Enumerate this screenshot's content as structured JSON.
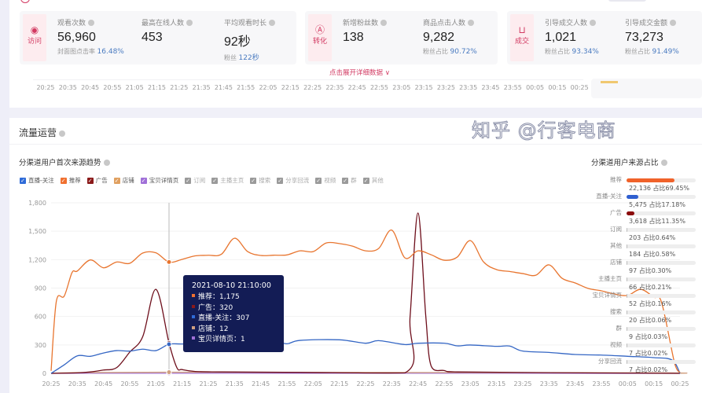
{
  "colors": {
    "accent": "#d23a62",
    "link": "#4a7bc0",
    "tooltip_bg": "#131c55"
  },
  "overview": {
    "groups": [
      {
        "icon": "eye-icon",
        "label": "访问",
        "metrics": [
          {
            "label": "观看次数",
            "value": "56,960",
            "sub_label": "封面图点击率",
            "sub_value": "16.48%"
          },
          {
            "label": "最高在线人数",
            "value": "453",
            "sub_label": "",
            "sub_value": ""
          },
          {
            "label": "平均观看时长",
            "value": "92秒",
            "sub_label": "粉丝",
            "sub_value": "122秒"
          }
        ]
      },
      {
        "icon": "user-circle-icon",
        "label": "转化",
        "metrics": [
          {
            "label": "新增粉丝数",
            "value": "138",
            "sub_label": "",
            "sub_value": ""
          },
          {
            "label": "商品点击人数",
            "value": "9,282",
            "sub_label": "粉丝占比",
            "sub_value": "90.72%"
          }
        ]
      },
      {
        "icon": "shopping-bag-icon",
        "label": "成交",
        "metrics": [
          {
            "label": "引导成交人数",
            "value": "1,021",
            "sub_label": "粉丝占比",
            "sub_value": "93.34%"
          },
          {
            "label": "引导成交金额",
            "value": "73,273",
            "sub_label": "粉丝占比",
            "sub_value": "91.49%"
          }
        ]
      }
    ],
    "expand_link": "点击展开详细数据 ∨",
    "time_axis": [
      "20:25",
      "20:35",
      "20:45",
      "20:55",
      "21:05",
      "21:15",
      "21:25",
      "21:35",
      "21:45",
      "21:55",
      "22:05",
      "22:15",
      "22:25",
      "22:35",
      "22:45",
      "22:55",
      "23:05",
      "23:15",
      "23:25",
      "23:35",
      "23:45",
      "23:55",
      "00:05",
      "00:15",
      "00:25"
    ]
  },
  "traffic": {
    "title": "流量运营",
    "trend_title": "分渠道用户首次来源趋势",
    "ratio_title": "分渠道用户来源占比",
    "legend": [
      {
        "label": "直播-关注",
        "color": "#2f6bd8",
        "checked": true
      },
      {
        "label": "推荐",
        "color": "#f07030",
        "checked": true
      },
      {
        "label": "广告",
        "color": "#8b1a1a",
        "checked": true
      },
      {
        "label": "店铺",
        "color": "#e0a060",
        "checked": true
      },
      {
        "label": "宝贝详情页",
        "color": "#a070d8",
        "checked": true
      },
      {
        "label": "订阅",
        "color": "#9a9a9a",
        "checked": true
      },
      {
        "label": "主播主页",
        "color": "#9a9a9a",
        "checked": true
      },
      {
        "label": "搜索",
        "color": "#9a9a9a",
        "checked": true
      },
      {
        "label": "分享回流",
        "color": "#9a9a9a",
        "checked": true
      },
      {
        "label": "视频",
        "color": "#9a9a9a",
        "checked": true
      },
      {
        "label": "群",
        "color": "#9a9a9a",
        "checked": true
      },
      {
        "label": "其他",
        "color": "#9a9a9a",
        "checked": true
      }
    ],
    "ratios": [
      {
        "label": "推荐",
        "value": "22,136 占比69.45%",
        "percent": 69.45,
        "color": "#f0622a"
      },
      {
        "label": "直播-关注",
        "value": "5,475 占比17.18%",
        "percent": 17.18,
        "color": "#2f5fd0"
      },
      {
        "label": "广告",
        "value": "3,618 占比11.35%",
        "percent": 11.35,
        "color": "#8b0c0c"
      },
      {
        "label": "订阅",
        "value": "203 占比0.64%",
        "percent": 0.64,
        "color": "#bbbbbb"
      },
      {
        "label": "其他",
        "value": "184 占比0.58%",
        "percent": 0.58,
        "color": "#bbbbbb"
      },
      {
        "label": "店铺",
        "value": "97 占比0.30%",
        "percent": 0.3,
        "color": "#bbbbbb"
      },
      {
        "label": "主播主页",
        "value": "66 占比0.21%",
        "percent": 0.21,
        "color": "#bbbbbb"
      },
      {
        "label": "宝贝详情页",
        "value": "52 占比0.16%",
        "percent": 0.16,
        "color": "#bbbbbb"
      },
      {
        "label": "搜索",
        "value": "20 占比0.06%",
        "percent": 0.06,
        "color": "#bbbbbb"
      },
      {
        "label": "群",
        "value": "9 占比0.03%",
        "percent": 0.03,
        "color": "#bbbbbb"
      },
      {
        "label": "视频",
        "value": "7 占比0.02%",
        "percent": 0.02,
        "color": "#bbbbbb"
      },
      {
        "label": "分享回流",
        "value": "7 占比0.02%",
        "percent": 0.02,
        "color": "#bbbbbb"
      }
    ],
    "tooltip": {
      "time": "2021-08-10 21:10:00",
      "rows": [
        {
          "text": "推荐：1,175",
          "color": "#f07030"
        },
        {
          "text": "广告：320",
          "color": "#8b1a1a"
        },
        {
          "text": "直播-关注：307",
          "color": "#2f6bd8"
        },
        {
          "text": "店铺：12",
          "color": "#d0a080"
        },
        {
          "text": "宝贝详情页：1",
          "color": "#a070d8"
        }
      ]
    }
  },
  "chart_data": {
    "type": "line",
    "xlabel": "",
    "ylabel": "",
    "ylim": [
      0,
      1800
    ],
    "yticks": [
      "0",
      "300",
      "600",
      "900",
      "1,200",
      "1,500",
      "1,800"
    ],
    "xlim": [
      "20:25",
      "00:25"
    ],
    "xticks": [
      "20:25",
      "20:35",
      "20:45",
      "20:55",
      "21:05",
      "21:15",
      "21:25",
      "21:35",
      "21:45",
      "21:55",
      "22:05",
      "22:15",
      "22:25",
      "22:35",
      "22:45",
      "22:55",
      "23:05",
      "23:15",
      "23:25",
      "23:35",
      "23:45",
      "23:55",
      "00:05",
      "00:15",
      "00:25"
    ],
    "grid": true,
    "crosshair": "21:10",
    "series": [
      {
        "name": "推荐",
        "color": "#e8752f",
        "points": [
          [
            "20:25",
            27
          ],
          [
            "20:27",
            760
          ],
          [
            "20:30",
            815
          ],
          [
            "20:33",
            1064
          ],
          [
            "20:35",
            1080
          ],
          [
            "20:40",
            1197
          ],
          [
            "20:45",
            1114
          ],
          [
            "20:50",
            1175
          ],
          [
            "20:55",
            1161
          ],
          [
            "21:00",
            1270
          ],
          [
            "21:05",
            1272
          ],
          [
            "21:10",
            1175
          ],
          [
            "21:15",
            1203
          ],
          [
            "21:20",
            1240
          ],
          [
            "21:25",
            1246
          ],
          [
            "21:30",
            1257
          ],
          [
            "21:35",
            1426
          ],
          [
            "21:40",
            1285
          ],
          [
            "21:45",
            1244
          ],
          [
            "21:50",
            1247
          ],
          [
            "21:55",
            1250
          ],
          [
            "22:00",
            1293
          ],
          [
            "22:05",
            1285
          ],
          [
            "22:10",
            1376
          ],
          [
            "22:15",
            1370
          ],
          [
            "22:20",
            1343
          ],
          [
            "22:25",
            1293
          ],
          [
            "22:30",
            1318
          ],
          [
            "22:35",
            1512
          ],
          [
            "22:40",
            1219
          ],
          [
            "22:45",
            1293
          ],
          [
            "22:50",
            1252
          ],
          [
            "22:55",
            1194
          ],
          [
            "23:00",
            1227
          ],
          [
            "23:05",
            1401
          ],
          [
            "23:10",
            1177
          ],
          [
            "23:15",
            1095
          ],
          [
            "23:20",
            1075
          ],
          [
            "23:25",
            1053
          ],
          [
            "23:30",
            1036
          ],
          [
            "23:35",
            1145
          ],
          [
            "23:40",
            1003
          ],
          [
            "23:45",
            954
          ],
          [
            "23:50",
            896
          ],
          [
            "23:55",
            871
          ],
          [
            "00:00",
            837
          ],
          [
            "00:05",
            822
          ],
          [
            "00:10",
            887
          ],
          [
            "00:15",
            804
          ],
          [
            "00:18",
            746
          ],
          [
            "00:23",
            100
          ],
          [
            "00:25",
            10
          ]
        ]
      },
      {
        "name": "直播-关注",
        "color": "#3466c4",
        "points": [
          [
            "20:25",
            0
          ],
          [
            "20:30",
            90
          ],
          [
            "20:35",
            185
          ],
          [
            "20:40",
            180
          ],
          [
            "20:45",
            215
          ],
          [
            "20:50",
            240
          ],
          [
            "20:55",
            235
          ],
          [
            "21:00",
            255
          ],
          [
            "21:05",
            240
          ],
          [
            "21:10",
            307
          ],
          [
            "21:15",
            310
          ],
          [
            "21:25",
            315
          ],
          [
            "21:35",
            312
          ],
          [
            "21:45",
            318
          ],
          [
            "21:50",
            345
          ],
          [
            "21:55",
            312
          ],
          [
            "22:00",
            348
          ],
          [
            "22:15",
            354
          ],
          [
            "22:25",
            318
          ],
          [
            "22:30",
            345
          ],
          [
            "22:40",
            304
          ],
          [
            "22:45",
            318
          ],
          [
            "22:55",
            318
          ],
          [
            "23:00",
            290
          ],
          [
            "23:05",
            299
          ],
          [
            "23:15",
            285
          ],
          [
            "23:20",
            288
          ],
          [
            "23:25",
            235
          ],
          [
            "23:35",
            221
          ],
          [
            "23:45",
            199
          ],
          [
            "23:55",
            193
          ],
          [
            "00:05",
            180
          ],
          [
            "00:15",
            166
          ],
          [
            "00:22",
            140
          ],
          [
            "00:25",
            0
          ]
        ]
      },
      {
        "name": "广告",
        "color": "#6e0f1c",
        "points": [
          [
            "20:25",
            0
          ],
          [
            "20:35",
            5
          ],
          [
            "20:40",
            15
          ],
          [
            "20:45",
            35
          ],
          [
            "20:50",
            60
          ],
          [
            "20:55",
            224
          ],
          [
            "21:00",
            390
          ],
          [
            "21:05",
            886
          ],
          [
            "21:10",
            320
          ],
          [
            "21:13",
            60
          ],
          [
            "21:15",
            40
          ],
          [
            "21:20",
            20
          ],
          [
            "21:30",
            15
          ],
          [
            "22:00",
            10
          ],
          [
            "22:40",
            5
          ],
          [
            "22:42",
            600
          ],
          [
            "22:45",
            1692
          ],
          [
            "22:48",
            600
          ],
          [
            "22:50",
            80
          ],
          [
            "22:55",
            30
          ],
          [
            "23:00",
            15
          ],
          [
            "23:30",
            8
          ],
          [
            "00:25",
            0
          ]
        ]
      },
      {
        "name": "店铺",
        "color": "#d0a080",
        "points": [
          [
            "20:25",
            0
          ],
          [
            "20:35",
            8
          ],
          [
            "21:10",
            12
          ],
          [
            "22:00",
            10
          ],
          [
            "23:00",
            8
          ],
          [
            "00:20",
            5
          ],
          [
            "00:25",
            0
          ]
        ]
      },
      {
        "name": "宝贝详情页",
        "color": "#a070d8",
        "points": [
          [
            "20:25",
            0
          ],
          [
            "20:35",
            1
          ],
          [
            "21:10",
            1
          ],
          [
            "23:00",
            1
          ],
          [
            "00:25",
            0
          ]
        ]
      }
    ]
  },
  "watermark": "知乎 @行客电商"
}
